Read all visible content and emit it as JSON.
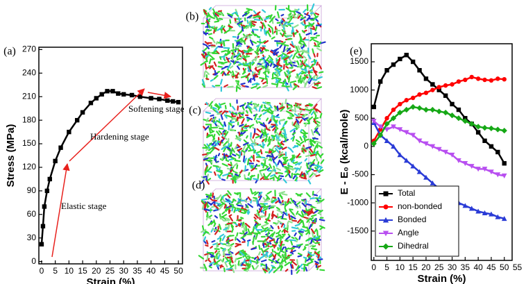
{
  "chart_data": [
    {
      "type": "line",
      "panel_label": "(a)",
      "xlabel": "Strain (%)",
      "ylabel": "Stress (MPa)",
      "x": [
        0,
        0.5,
        1,
        2,
        3,
        5,
        7,
        10,
        13,
        15,
        18,
        20,
        22,
        24,
        26,
        28,
        30,
        33,
        36,
        40,
        43,
        46,
        48,
        50
      ],
      "values": [
        22,
        45,
        70,
        90,
        105,
        128,
        145,
        165,
        180,
        190,
        202,
        208,
        213,
        217,
        217,
        214,
        213,
        212,
        210,
        208,
        207,
        205,
        204,
        203
      ],
      "color": "#000000",
      "marker": "square",
      "xlim": [
        -1,
        51.5
      ],
      "xticks": [
        0,
        5,
        10,
        15,
        20,
        25,
        30,
        35,
        40,
        45,
        50
      ],
      "ylim": [
        -3,
        273
      ],
      "yticks": [
        0,
        30,
        60,
        90,
        120,
        150,
        180,
        210,
        240,
        270
      ],
      "annotations": [
        "Elastic stage",
        "Hardening stage",
        "Softening stage"
      ],
      "annotation_color": "#e8201c"
    },
    {
      "type": "line",
      "panel_label": "(e)",
      "xlabel": "Strain (%)",
      "ylabel": "E - E₀ (kcal/mole)",
      "x": [
        0,
        2.5,
        5,
        7.5,
        10,
        12.5,
        15,
        17.5,
        20,
        22.5,
        25,
        27.5,
        30,
        32.5,
        35,
        37.5,
        40,
        42.5,
        45,
        47.5,
        50
      ],
      "series": [
        {
          "name": "Total",
          "color": "#000000",
          "marker": "square",
          "values": [
            700,
            1150,
            1350,
            1450,
            1550,
            1620,
            1500,
            1350,
            1200,
            1100,
            1000,
            900,
            750,
            650,
            500,
            400,
            250,
            100,
            0,
            -100,
            -300
          ]
        },
        {
          "name": "non-bonded",
          "color": "#ff0000",
          "marker": "circle",
          "values": [
            100,
            300,
            500,
            650,
            750,
            820,
            860,
            920,
            950,
            1000,
            1050,
            1080,
            1100,
            1150,
            1180,
            1230,
            1200,
            1180,
            1170,
            1200,
            1190
          ]
        },
        {
          "name": "Bonded",
          "color": "#2a3bd6",
          "marker": "triangle-up",
          "values": [
            420,
            200,
            100,
            0,
            -150,
            -250,
            -350,
            -450,
            -550,
            -650,
            -750,
            -850,
            -900,
            -1000,
            -1050,
            -1100,
            -1150,
            -1180,
            -1200,
            -1250,
            -1280
          ]
        },
        {
          "name": "Angle",
          "color": "#b84ff0",
          "marker": "triangle-down",
          "values": [
            450,
            350,
            300,
            350,
            300,
            250,
            200,
            100,
            50,
            0,
            -50,
            -100,
            -150,
            -250,
            -300,
            -350,
            -400,
            -400,
            -450,
            -500,
            -520
          ]
        },
        {
          "name": "Dihedral",
          "color": "#16a816",
          "marker": "diamond",
          "values": [
            50,
            200,
            400,
            500,
            600,
            650,
            700,
            680,
            650,
            650,
            620,
            600,
            550,
            500,
            450,
            400,
            350,
            330,
            320,
            300,
            280
          ]
        }
      ],
      "xlim": [
        -1,
        53
      ],
      "xticks": [
        0,
        5,
        10,
        15,
        20,
        25,
        30,
        35,
        40,
        45,
        50,
        55
      ],
      "ylim": [
        -2020,
        1820
      ],
      "yticks": [
        -1500,
        -1000,
        -500,
        0,
        500,
        1000,
        1500
      ],
      "legend": "lower left"
    }
  ],
  "images": [
    {
      "label": "(b)"
    },
    {
      "label": "(c)"
    },
    {
      "label": "(d)"
    }
  ]
}
